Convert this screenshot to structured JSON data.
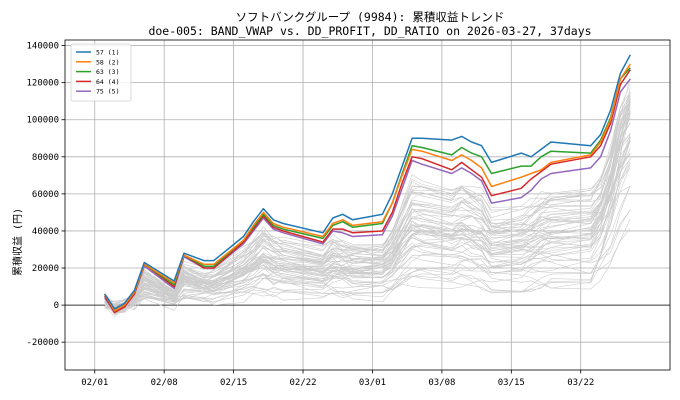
{
  "chart_data": {
    "type": "line",
    "title": "ソフトバンクグループ (9984): 累積収益トレンド",
    "subtitle": "doe-005: BAND_VWAP vs. DD_PROFIT, DD_RATIO on 2026-03-27, 37days",
    "xlabel": "",
    "ylabel": "累積収益 (円)",
    "ylim": [
      -35000,
      143000
    ],
    "xlim": [
      "2026-01-29",
      "2026-03-31"
    ],
    "x_ticks": [
      "02/01",
      "02/08",
      "02/15",
      "02/22",
      "03/01",
      "03/08",
      "03/15",
      "03/22"
    ],
    "x_tick_dates": [
      "2026-02-01",
      "2026-02-08",
      "2026-02-15",
      "2026-02-22",
      "2026-03-01",
      "2026-03-08",
      "2026-03-15",
      "2026-03-22"
    ],
    "y_ticks": [
      -20000,
      0,
      20000,
      40000,
      60000,
      80000,
      100000,
      120000,
      140000
    ],
    "y_tick_labels": [
      "-20000",
      "0",
      "20000",
      "40000",
      "60000",
      "80000",
      "100000",
      "120000",
      "140000"
    ],
    "grid": true,
    "zero_line": true,
    "legend_position": "top-left",
    "dates": [
      "2026-02-02",
      "2026-02-03",
      "2026-02-04",
      "2026-02-05",
      "2026-02-06",
      "2026-02-09",
      "2026-02-10",
      "2026-02-12",
      "2026-02-13",
      "2026-02-16",
      "2026-02-17",
      "2026-02-18",
      "2026-02-19",
      "2026-02-20",
      "2026-02-24",
      "2026-02-25",
      "2026-02-26",
      "2026-02-27",
      "2026-03-02",
      "2026-03-03",
      "2026-03-04",
      "2026-03-05",
      "2026-03-06",
      "2026-03-09",
      "2026-03-10",
      "2026-03-11",
      "2026-03-12",
      "2026-03-13",
      "2026-03-16",
      "2026-03-17",
      "2026-03-18",
      "2026-03-19",
      "2026-03-23",
      "2026-03-24",
      "2026-03-25",
      "2026-03-26",
      "2026-03-27"
    ],
    "series": [
      {
        "name": "57 (1)",
        "color": "#1f77b4",
        "values": [
          6000,
          -2000,
          1000,
          8000,
          23000,
          13000,
          28000,
          24000,
          24000,
          37000,
          45000,
          52000,
          46000,
          44000,
          39000,
          47000,
          49000,
          46000,
          49000,
          60000,
          75000,
          90000,
          90000,
          89000,
          91000,
          88000,
          86000,
          77000,
          82000,
          80000,
          84000,
          88000,
          86000,
          92000,
          105000,
          125000,
          135000
        ]
      },
      {
        "name": "58 (2)",
        "color": "#ff7f0e",
        "values": [
          6000,
          -3000,
          0,
          7000,
          22000,
          12000,
          27000,
          22000,
          22000,
          35000,
          43000,
          50000,
          44000,
          42000,
          37000,
          44000,
          46000,
          43000,
          45000,
          55000,
          70000,
          84000,
          83000,
          78000,
          81000,
          78000,
          74000,
          64000,
          69000,
          71000,
          73000,
          77000,
          81000,
          88000,
          100000,
          122000,
          130000
        ]
      },
      {
        "name": "63 (3)",
        "color": "#2ca02c",
        "values": [
          6000,
          -3000,
          0,
          7000,
          22000,
          11000,
          27000,
          21000,
          21000,
          35000,
          42000,
          49000,
          43000,
          41000,
          36000,
          43000,
          45000,
          42000,
          44000,
          55000,
          71000,
          86000,
          85000,
          81000,
          85000,
          82000,
          80000,
          71000,
          75000,
          75000,
          80000,
          83000,
          82000,
          89000,
          101000,
          122000,
          128000
        ]
      },
      {
        "name": "64 (4)",
        "color": "#d62728",
        "values": [
          5000,
          -4000,
          -1000,
          6000,
          22000,
          10000,
          27000,
          20000,
          20000,
          34000,
          41000,
          48000,
          42000,
          40000,
          34000,
          41000,
          41000,
          39000,
          40000,
          50000,
          66000,
          80000,
          79000,
          73000,
          77000,
          73000,
          69000,
          59000,
          63000,
          68000,
          72000,
          76000,
          80000,
          86000,
          98000,
          119000,
          127000
        ]
      },
      {
        "name": "75 (5)",
        "color": "#9467bd",
        "values": [
          4000,
          -4000,
          -1000,
          6000,
          21000,
          9000,
          26000,
          20000,
          20000,
          33000,
          40000,
          47000,
          41000,
          39000,
          33000,
          40000,
          39000,
          37000,
          38000,
          48000,
          63000,
          78000,
          76000,
          71000,
          74000,
          71000,
          67000,
          55000,
          58000,
          62000,
          68000,
          71000,
          74000,
          80000,
          94000,
          115000,
          122000
        ]
      }
    ],
    "background_series_count": 60,
    "background_series_color": "#cccccc"
  }
}
